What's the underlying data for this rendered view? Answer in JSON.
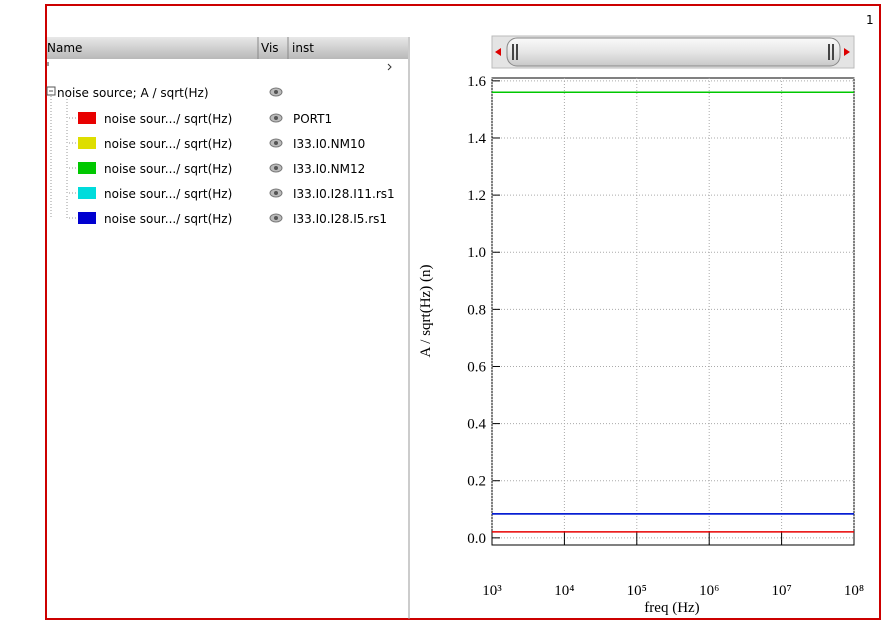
{
  "panel_label": "1",
  "tree": {
    "columns": [
      "Name",
      "Vis",
      "inst"
    ],
    "group": "noise source; A / sqrt(Hz)"
  },
  "chart_data": {
    "type": "line",
    "y_label": "A / sqrt(Hz) (n)",
    "x_label": "freq (Hz)",
    "log_x": true,
    "grid": true,
    "x": [
      1000,
      100000000
    ],
    "xlim": [
      1000,
      100000000
    ],
    "xticks": [
      {
        "value": 1000,
        "label": "10³"
      },
      {
        "value": 10000,
        "label": "10⁴"
      },
      {
        "value": 100000,
        "label": "10⁵"
      },
      {
        "value": 1000000,
        "label": "10⁶"
      },
      {
        "value": 10000000,
        "label": "10⁷"
      },
      {
        "value": 100000000,
        "label": "10⁸"
      }
    ],
    "ylim": [
      -0.025,
      1.61
    ],
    "yticks": [
      {
        "value": 0,
        "label": "0.0"
      },
      0.2,
      0.4,
      0.6,
      0.8,
      {
        "value": 1,
        "label": "1.0"
      },
      1.2,
      1.4,
      1.6
    ],
    "series": [
      {
        "name": "noise sour.../ sqrt(Hz)",
        "inst": "PORT1",
        "color": "#e80000",
        "values": [
          0.021,
          0.021
        ]
      },
      {
        "name": "noise sour.../ sqrt(Hz)",
        "inst": "I33.I0.NM10",
        "color": "#dede00",
        "values": [
          1.56,
          1.56
        ]
      },
      {
        "name": "noise sour.../ sqrt(Hz)",
        "inst": "I33.I0.NM12",
        "color": "#00c800",
        "values": [
          1.56,
          1.56
        ]
      },
      {
        "name": "noise sour.../ sqrt(Hz)",
        "inst": "I33.I0.I28.I11.rs1",
        "color": "#00dcdc",
        "values": [
          0.084,
          0.084
        ]
      },
      {
        "name": "noise sour.../ sqrt(Hz)",
        "inst": "I33.I0.I28.I5.rs1",
        "color": "#0000d0",
        "values": [
          0.084,
          0.084
        ]
      }
    ]
  }
}
